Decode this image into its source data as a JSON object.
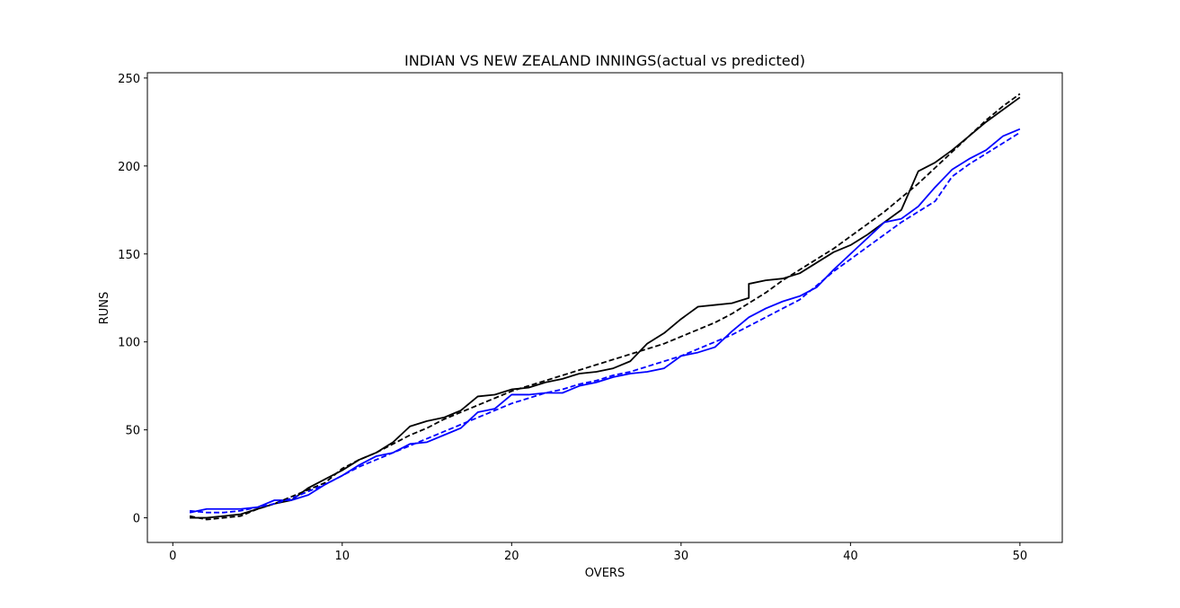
{
  "chart_data": {
    "type": "line",
    "title": "INDIAN VS NEW ZEALAND INNINGS(actual vs predicted)",
    "xlabel": "OVERS",
    "ylabel": "RUNS",
    "xlim": [
      -1.5,
      52.5
    ],
    "ylim": [
      -14,
      253
    ],
    "xticks": [
      0,
      10,
      20,
      30,
      40,
      50
    ],
    "yticks": [
      0,
      50,
      100,
      150,
      200,
      250
    ],
    "grid": false,
    "legend": "none",
    "x": [
      1,
      2,
      3,
      4,
      5,
      6,
      7,
      8,
      9,
      10,
      11,
      12,
      13,
      14,
      15,
      16,
      17,
      18,
      19,
      20,
      21,
      22,
      23,
      24,
      25,
      26,
      27,
      28,
      29,
      30,
      31,
      32,
      33,
      34,
      35,
      36,
      37,
      38,
      39,
      40,
      41,
      42,
      43,
      44,
      45,
      46,
      47,
      48,
      49,
      50
    ],
    "series": [
      {
        "color": "#000000",
        "dash": "solid",
        "values": [
          0,
          0,
          1,
          2,
          5,
          8,
          10,
          17,
          22,
          27,
          33,
          37,
          43,
          52,
          55,
          57,
          61,
          69,
          70,
          73,
          74,
          77,
          79,
          82,
          83,
          85,
          89,
          99,
          105,
          113,
          120,
          121,
          122,
          133,
          135,
          136,
          139,
          145,
          151,
          155,
          161,
          168,
          175,
          197,
          202,
          209,
          217,
          225,
          232,
          239
        ],
        "extra_points": [
          [
            34,
            125
          ]
        ]
      },
      {
        "color": "#0000ff",
        "dash": "solid",
        "values": [
          3,
          5,
          5,
          5,
          6,
          10,
          10,
          13,
          19,
          24,
          30,
          35,
          37,
          42,
          43,
          47,
          51,
          60,
          62,
          70,
          70,
          71,
          71,
          75,
          77,
          80,
          82,
          83,
          85,
          92,
          94,
          97,
          106,
          114,
          119,
          123,
          126,
          131,
          141,
          150,
          159,
          168,
          170,
          177,
          188,
          198,
          204,
          209,
          217,
          221
        ]
      },
      {
        "color": "#000000",
        "dash": "dashed",
        "values": [
          1,
          -1,
          0,
          1,
          5,
          8,
          12,
          16,
          20,
          28,
          33,
          37,
          42,
          47,
          51,
          56,
          60,
          64,
          68,
          72,
          75,
          78,
          81,
          84,
          87,
          90,
          93,
          96,
          99,
          103,
          107,
          111,
          116,
          122,
          128,
          135,
          141,
          147,
          153,
          160,
          167,
          174,
          182,
          190,
          199,
          208,
          217,
          226,
          234,
          241
        ]
      },
      {
        "color": "#0000ff",
        "dash": "dashed",
        "values": [
          4,
          3,
          3,
          4,
          6,
          8,
          11,
          15,
          19,
          24,
          29,
          33,
          37,
          41,
          45,
          49,
          53,
          57,
          61,
          65,
          68,
          71,
          73,
          76,
          78,
          81,
          83,
          86,
          89,
          92,
          96,
          100,
          104,
          109,
          114,
          119,
          124,
          132,
          140,
          147,
          154,
          161,
          168,
          174,
          180,
          194,
          201,
          207,
          213,
          219
        ]
      }
    ]
  }
}
